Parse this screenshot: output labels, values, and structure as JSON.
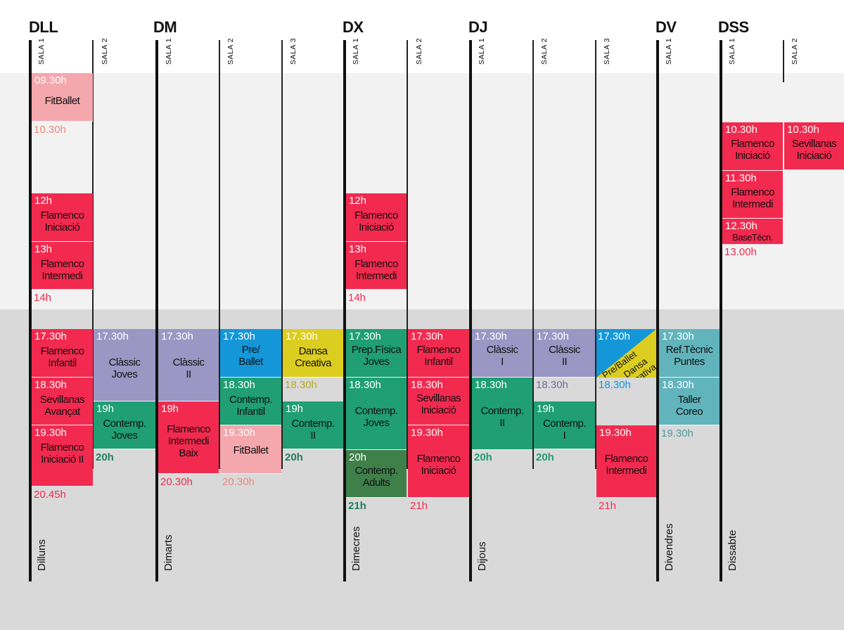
{
  "days": [
    {
      "code": "DLL",
      "name": "Dilluns",
      "rooms": [
        "SALA 1",
        "SALA 2"
      ]
    },
    {
      "code": "DM",
      "name": "Dimarts",
      "rooms": [
        "SALA 1",
        "SALA 2",
        "SALA 3"
      ]
    },
    {
      "code": "DX",
      "name": "Dimecres",
      "rooms": [
        "SALA 1",
        "SALA 2"
      ]
    },
    {
      "code": "DJ",
      "name": "Dijous",
      "rooms": [
        "SALA 1",
        "SALA 2",
        "SALA 3"
      ]
    },
    {
      "code": "DV",
      "name": "Divendres",
      "rooms": [
        "SALA 1"
      ]
    },
    {
      "code": "DSS",
      "name": "Dissabte",
      "rooms": [
        "SALA 1",
        "SALA 2"
      ]
    }
  ],
  "blocks": {
    "dll1_fitballet": {
      "time": "09.30h",
      "name": "FitBallet"
    },
    "dll1_end_morning1": "10.30h",
    "dll1_flam_ini": {
      "time": "12h",
      "name": "Flamenco\nIniciació"
    },
    "dll1_flam_int": {
      "time": "13h",
      "name": "Flamenco\nIntermedi"
    },
    "dll1_end_morning2": "14h",
    "dll1_flam_inf": {
      "time": "17.30h",
      "name": "Flamenco\nInfantil"
    },
    "dll1_sev_av": {
      "time": "18.30h",
      "name": "Sevillanas\nAvançat"
    },
    "dll1_flam_ini2": {
      "time": "19.30h",
      "name": "Flamenco\nIniciació II"
    },
    "dll1_end": "20.45h",
    "dll2_classic": {
      "time": "17.30h",
      "name": "Clàssic\nJoves"
    },
    "dll2_contemp": {
      "time": "19h",
      "name": "Contemp.\nJoves"
    },
    "dll2_end": "20h",
    "dm1_classic": {
      "time": "17.30h",
      "name": "Clàssic\nII"
    },
    "dm1_flam": {
      "time": "19h",
      "name": "Flamenco\nIntermedi\nBaix"
    },
    "dm1_end": "20.30h",
    "dm2_preballet": {
      "time": "17.30h",
      "name": "Pre/\nBallet"
    },
    "dm2_contemp": {
      "time": "18.30h",
      "name": "Contemp.\nInfantil"
    },
    "dm2_fitballet": {
      "time": "19.30h",
      "name": "FitBallet"
    },
    "dm2_end": "20.30h",
    "dm3_dansa": {
      "time": "17.30h",
      "name": "Dansa\nCreativa"
    },
    "dm3_mid": "18.30h",
    "dm3_contemp": {
      "time": "19h",
      "name": "Contemp.\nII"
    },
    "dm3_end": "20h",
    "dx1_flam_ini": {
      "time": "12h",
      "name": "Flamenco\nIniciació"
    },
    "dx1_flam_int": {
      "time": "13h",
      "name": "Flamenco\nIntermedi"
    },
    "dx1_end_morning": "14h",
    "dx1_prep": {
      "time": "17.30h",
      "name": "Prep.Física\nJoves"
    },
    "dx1_contemp": {
      "time": "18.30h",
      "name": "Contemp.\nJoves"
    },
    "dx1_adults": {
      "time": "20h",
      "name": "Contemp.\nAdults"
    },
    "dx1_end": "21h",
    "dx2_flam_inf": {
      "time": "17.30h",
      "name": "Flamenco\nInfantil"
    },
    "dx2_sev": {
      "time": "18.30h",
      "name": "Sevillanas\nIniciació"
    },
    "dx2_flam_ini": {
      "time": "19.30h",
      "name": "Flamenco\nIniciació"
    },
    "dx2_end": "21h",
    "dj1_classic": {
      "time": "17.30h",
      "name": "Clàssic\nI"
    },
    "dj1_contemp": {
      "time": "18.30h",
      "name": "Contemp.\nII"
    },
    "dj1_end": "20h",
    "dj2_classic": {
      "time": "17.30h",
      "name": "Clàssic\nII"
    },
    "dj2_mid": "18.30h",
    "dj2_contemp": {
      "time": "19h",
      "name": "Contemp.\nI"
    },
    "dj2_end": "20h",
    "dj3_split": {
      "time": "17.30h",
      "name_a": "Pre/Ballet",
      "name_b": "Dansa\nCreativa"
    },
    "dj3_mid": "18.30h",
    "dj3_flam": {
      "time": "19.30h",
      "name": "Flamenco\nIntermedi"
    },
    "dj3_end": "21h",
    "dv1_ref": {
      "time": "17.30h",
      "name": "Ref.Tècnic\nPuntes"
    },
    "dv1_taller": {
      "time": "18.30h",
      "name": "Taller\nCoreo"
    },
    "dv1_end": "19.30h",
    "dss1_flam_ini": {
      "time": "10.30h",
      "name": "Flamenco\nIniciació"
    },
    "dss1_flam_int": {
      "time": "11.30h",
      "name": "Flamenco\nIntermedi"
    },
    "dss1_base": {
      "time": "12.30h",
      "name": "BaseTécn."
    },
    "dss1_end": "13.00h",
    "dss2_sev": {
      "time": "10.30h",
      "name": "Sevillanas\nIniciació"
    }
  },
  "colors": {
    "red": "#f22a4f",
    "pink": "#f4a7ad",
    "lavender": "#9b97c4",
    "blue": "#1497d9",
    "yellow": "#dccd21",
    "green": "#1f9f73",
    "dark_green": "#3f7f4a",
    "teal": "#62b4bc"
  }
}
